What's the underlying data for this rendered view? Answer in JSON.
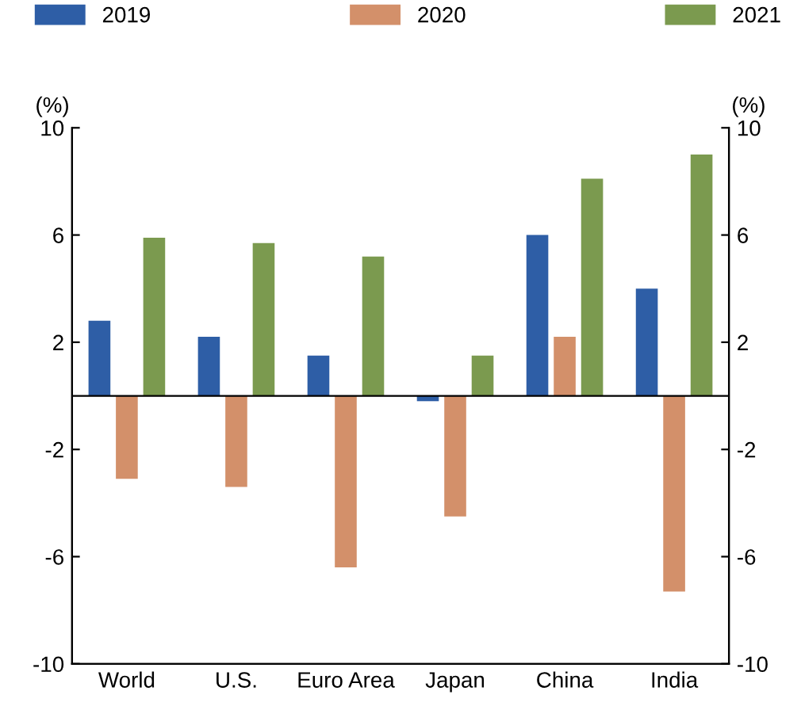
{
  "chart_data": {
    "type": "bar",
    "categories": [
      "World",
      "U.S.",
      "Euro Area",
      "Japan",
      "China",
      "India"
    ],
    "series": [
      {
        "name": "2019",
        "color": "#2e5ea6",
        "values": [
          2.8,
          2.2,
          1.5,
          -0.2,
          6.0,
          4.0
        ]
      },
      {
        "name": "2020",
        "color": "#d3906a",
        "values": [
          -3.1,
          -3.4,
          -6.4,
          -4.5,
          2.2,
          -7.3
        ]
      },
      {
        "name": "2021",
        "color": "#7b9a4f",
        "values": [
          5.9,
          5.7,
          5.2,
          1.5,
          8.1,
          9.0
        ]
      }
    ],
    "ylabel": "(%)",
    "y2label": "(%)",
    "ylim": [
      -10,
      10
    ],
    "yticks": [
      -10,
      -6,
      -2,
      2,
      6,
      10
    ],
    "y2lim": [
      -10,
      10
    ],
    "y2ticks": [
      -10,
      -6,
      -2,
      2,
      6,
      10
    ],
    "ref_lines": [
      {
        "axis": "y",
        "value": 0,
        "label": null,
        "color": "#000000"
      }
    ],
    "legend": "top",
    "grid": false
  }
}
